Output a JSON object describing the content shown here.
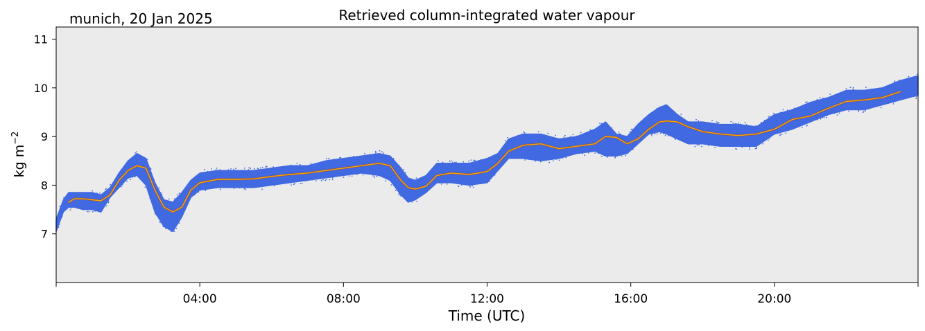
{
  "chart_data": {
    "type": "scatter",
    "title": "Retrieved column-integrated water vapour",
    "subtitle": "munich, 20 Jan 2025",
    "xlabel": "Time (UTC)",
    "ylabel": "kg m",
    "ylabel_superscript": "−2",
    "x_unit": "hours (UTC)",
    "xlim": [
      0,
      24
    ],
    "ylim": [
      6.0,
      11.25
    ],
    "x_ticks": [
      {
        "value": 0,
        "label": ""
      },
      {
        "value": 4,
        "label": "04:00"
      },
      {
        "value": 8,
        "label": "08:00"
      },
      {
        "value": 12,
        "label": "12:00"
      },
      {
        "value": 16,
        "label": "16:00"
      },
      {
        "value": 20,
        "label": "20:00"
      },
      {
        "value": 24,
        "label": ""
      }
    ],
    "y_ticks": [
      {
        "value": 7,
        "label": "7"
      },
      {
        "value": 8,
        "label": "8"
      },
      {
        "value": 9,
        "label": "9"
      },
      {
        "value": 10,
        "label": "10"
      },
      {
        "value": 11,
        "label": "11"
      }
    ],
    "grid": false,
    "legend": "none",
    "background_color": "#ebebeb",
    "series": [
      {
        "kind": "scatter-band",
        "color": "#4169e1",
        "x": [
          0.0,
          0.1,
          0.2,
          0.35,
          0.5,
          0.75,
          1.0,
          1.25,
          1.5,
          1.75,
          2.0,
          2.25,
          2.5,
          2.75,
          3.0,
          3.25,
          3.5,
          3.75,
          4.0,
          4.5,
          5.0,
          5.5,
          6.0,
          6.5,
          7.0,
          7.5,
          8.0,
          8.5,
          9.0,
          9.3,
          9.6,
          9.8,
          10.0,
          10.3,
          10.6,
          11.0,
          11.5,
          12.0,
          12.3,
          12.6,
          13.0,
          13.5,
          14.0,
          14.5,
          15.0,
          15.3,
          15.6,
          15.9,
          16.2,
          16.5,
          16.8,
          17.0,
          17.3,
          17.6,
          18.0,
          18.5,
          19.0,
          19.5,
          20.0,
          20.5,
          21.0,
          21.5,
          22.0,
          22.5,
          23.0,
          23.5,
          24.0
        ],
        "y_upper": [
          7.3,
          7.5,
          7.7,
          7.85,
          7.85,
          7.85,
          7.85,
          7.8,
          7.95,
          8.25,
          8.5,
          8.65,
          8.55,
          8.05,
          7.7,
          7.65,
          7.85,
          8.1,
          8.25,
          8.3,
          8.3,
          8.3,
          8.35,
          8.4,
          8.4,
          8.5,
          8.55,
          8.6,
          8.65,
          8.6,
          8.35,
          8.15,
          8.1,
          8.2,
          8.45,
          8.45,
          8.45,
          8.55,
          8.65,
          8.95,
          9.05,
          9.05,
          8.95,
          9.0,
          9.15,
          9.3,
          9.05,
          9.0,
          9.25,
          9.45,
          9.6,
          9.65,
          9.45,
          9.3,
          9.3,
          9.25,
          9.25,
          9.2,
          9.45,
          9.55,
          9.7,
          9.8,
          9.95,
          9.95,
          10.0,
          10.15,
          10.25
        ],
        "y_lower": [
          7.05,
          7.25,
          7.45,
          7.55,
          7.55,
          7.5,
          7.5,
          7.45,
          7.75,
          7.95,
          8.15,
          8.2,
          8.0,
          7.45,
          7.15,
          7.05,
          7.35,
          7.75,
          7.9,
          7.95,
          7.95,
          7.95,
          8.0,
          8.05,
          8.1,
          8.15,
          8.2,
          8.25,
          8.2,
          8.1,
          7.8,
          7.65,
          7.7,
          7.85,
          8.05,
          8.05,
          8.0,
          8.05,
          8.3,
          8.55,
          8.55,
          8.5,
          8.55,
          8.65,
          8.7,
          8.6,
          8.6,
          8.65,
          8.85,
          9.05,
          9.1,
          9.05,
          8.95,
          8.85,
          8.85,
          8.8,
          8.8,
          8.8,
          9.05,
          9.15,
          9.3,
          9.45,
          9.55,
          9.55,
          9.65,
          9.75,
          9.85
        ]
      },
      {
        "kind": "line",
        "color": "#ffa500",
        "x": [
          0.35,
          0.5,
          0.75,
          1.0,
          1.25,
          1.5,
          1.75,
          2.0,
          2.25,
          2.5,
          2.75,
          3.0,
          3.25,
          3.5,
          3.75,
          4.0,
          4.5,
          5.0,
          5.5,
          6.0,
          6.5,
          7.0,
          7.5,
          8.0,
          8.5,
          9.0,
          9.3,
          9.6,
          9.8,
          10.0,
          10.3,
          10.6,
          11.0,
          11.5,
          12.0,
          12.3,
          12.6,
          13.0,
          13.5,
          14.0,
          14.5,
          15.0,
          15.3,
          15.6,
          15.9,
          16.2,
          16.5,
          16.8,
          17.0,
          17.3,
          17.6,
          18.0,
          18.5,
          19.0,
          19.5,
          20.0,
          20.5,
          21.0,
          21.5,
          22.0,
          22.5,
          23.0,
          23.5
        ],
        "y": [
          7.65,
          7.72,
          7.72,
          7.7,
          7.68,
          7.8,
          8.1,
          8.3,
          8.4,
          8.35,
          7.9,
          7.55,
          7.45,
          7.55,
          7.9,
          8.05,
          8.12,
          8.12,
          8.13,
          8.18,
          8.22,
          8.25,
          8.3,
          8.35,
          8.4,
          8.45,
          8.4,
          8.1,
          7.95,
          7.92,
          7.98,
          8.2,
          8.25,
          8.22,
          8.28,
          8.45,
          8.7,
          8.82,
          8.85,
          8.75,
          8.8,
          8.85,
          9.0,
          8.98,
          8.85,
          8.95,
          9.15,
          9.3,
          9.32,
          9.3,
          9.2,
          9.1,
          9.05,
          9.02,
          9.05,
          9.15,
          9.35,
          9.42,
          9.58,
          9.72,
          9.75,
          9.8,
          9.92
        ]
      }
    ]
  }
}
